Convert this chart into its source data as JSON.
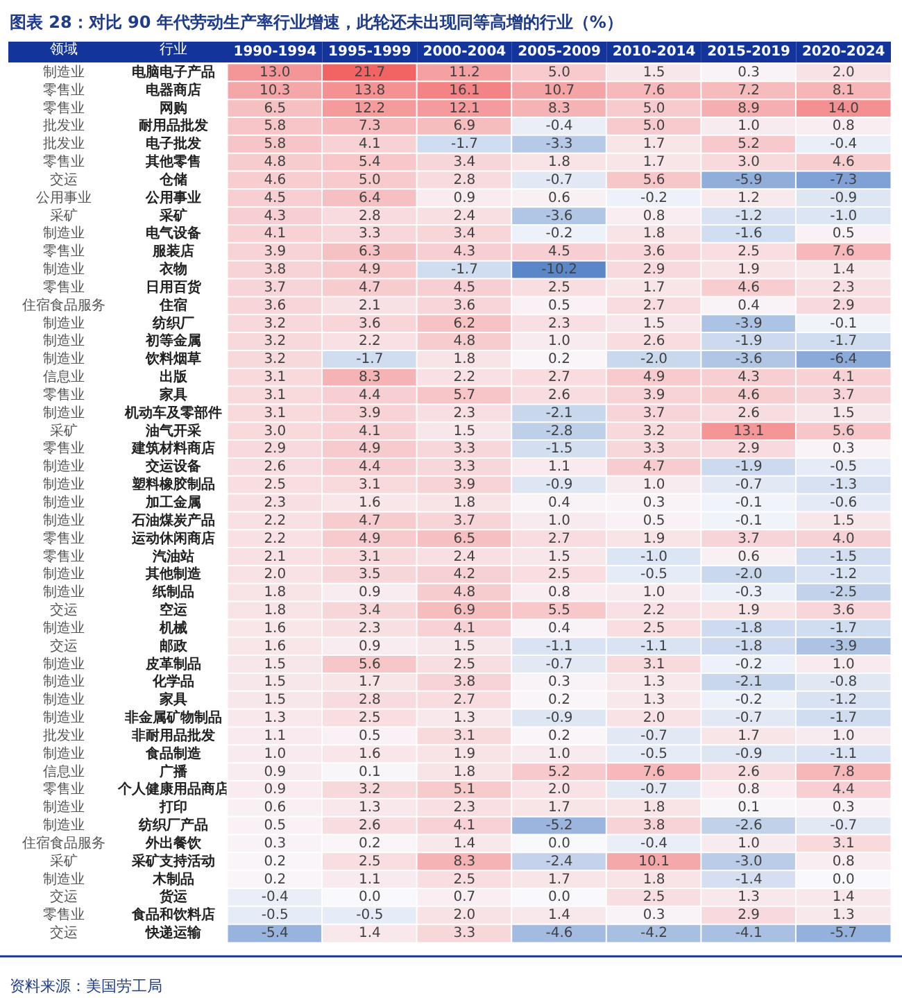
{
  "chart_data": {
    "type": "heatmap",
    "title": "图表 28：对比 90 年代劳动生产率行业增速，此轮还未出现同等高增的行业（%）",
    "ylabel": "行业",
    "y2label": "领域",
    "annotations": [
      "资料来源：美国劳工局"
    ],
    "data_labels": true,
    "categories": [
      "1990-1994",
      "1995-1999",
      "2000-2004",
      "2005-2009",
      "2010-2014",
      "2015-2019",
      "2020-2024"
    ],
    "y_categories": [
      "电脑电子产品",
      "电器商店",
      "网购",
      "耐用品批发",
      "电子批发",
      "其他零售",
      "仓储",
      "公用事业",
      "采矿",
      "电气设备",
      "服装店",
      "衣物",
      "日用百货",
      "住宿",
      "纺织厂",
      "初等金属",
      "饮料烟草",
      "出版",
      "家具",
      "机动车及零部件",
      "油气开采",
      "建筑材料商店",
      "交运设备",
      "塑料橡胶制品",
      "加工金属",
      "石油煤炭产品",
      "运动休闲商店",
      "汽油站",
      "其他制造",
      "纸制品",
      "空运",
      "机械",
      "邮政",
      "皮革制品",
      "化学品",
      "家具",
      "非金属矿物制品",
      "非耐用品批发",
      "食品制造",
      "广播",
      "个人健康用品商店",
      "打印",
      "纺织厂产品",
      "外出餐饮",
      "采矿支持活动",
      "木制品",
      "货运",
      "食品和饮料店",
      "快递运输"
    ],
    "y2_categories": [
      "制造业",
      "零售业",
      "零售业",
      "批发业",
      "批发业",
      "零售业",
      "交运",
      "公用事业",
      "采矿",
      "制造业",
      "零售业",
      "制造业",
      "零售业",
      "住宿食品服务",
      "制造业",
      "制造业",
      "制造业",
      "信息业",
      "零售业",
      "制造业",
      "采矿",
      "零售业",
      "制造业",
      "制造业",
      "制造业",
      "制造业",
      "零售业",
      "零售业",
      "制造业",
      "制造业",
      "交运",
      "制造业",
      "交运",
      "制造业",
      "制造业",
      "制造业",
      "制造业",
      "批发业",
      "制造业",
      "信息业",
      "零售业",
      "制造业",
      "制造业",
      "住宿食品服务",
      "采矿",
      "制造业",
      "交运",
      "零售业",
      "交运"
    ],
    "cells": [
      [
        13.0,
        21.7,
        11.2,
        5.0,
        1.5,
        0.3,
        2.0
      ],
      [
        10.3,
        13.8,
        16.1,
        10.7,
        7.6,
        7.2,
        8.1
      ],
      [
        6.5,
        12.2,
        12.1,
        8.3,
        5.0,
        8.9,
        14.0
      ],
      [
        5.8,
        7.3,
        6.9,
        -0.4,
        5.0,
        1.0,
        0.8
      ],
      [
        5.8,
        4.1,
        -1.7,
        -3.3,
        1.7,
        5.2,
        -0.4
      ],
      [
        4.8,
        5.4,
        3.4,
        1.8,
        1.7,
        3.0,
        4.6
      ],
      [
        4.6,
        5.0,
        2.8,
        -0.7,
        5.6,
        -5.9,
        -7.3
      ],
      [
        4.5,
        6.4,
        0.9,
        0.6,
        -0.2,
        1.2,
        -0.9
      ],
      [
        4.3,
        2.8,
        2.4,
        -3.6,
        0.8,
        -1.2,
        -1.0
      ],
      [
        4.1,
        3.3,
        3.4,
        -0.2,
        1.8,
        -1.6,
        0.5
      ],
      [
        3.9,
        6.3,
        4.3,
        4.5,
        3.6,
        2.5,
        7.6
      ],
      [
        3.8,
        4.9,
        -1.7,
        -10.2,
        2.9,
        1.9,
        1.4
      ],
      [
        3.7,
        4.7,
        4.5,
        2.5,
        1.7,
        4.6,
        2.3
      ],
      [
        3.6,
        2.1,
        3.6,
        0.5,
        2.7,
        0.4,
        2.9
      ],
      [
        3.2,
        3.6,
        6.2,
        2.3,
        1.5,
        -3.9,
        -0.1
      ],
      [
        3.2,
        2.2,
        4.8,
        1.0,
        2.6,
        -1.9,
        -1.7
      ],
      [
        3.2,
        -1.7,
        1.8,
        0.2,
        -2.0,
        -3.6,
        -6.4
      ],
      [
        3.1,
        8.3,
        2.2,
        2.7,
        4.9,
        4.3,
        4.1
      ],
      [
        3.1,
        4.4,
        5.7,
        2.6,
        3.9,
        4.6,
        3.7
      ],
      [
        3.1,
        3.9,
        2.3,
        -2.1,
        3.7,
        2.6,
        1.5
      ],
      [
        3.0,
        4.1,
        1.5,
        -2.8,
        3.2,
        13.1,
        5.6
      ],
      [
        2.9,
        4.9,
        3.3,
        -1.5,
        3.3,
        2.9,
        0.3
      ],
      [
        2.6,
        4.4,
        3.3,
        1.1,
        4.7,
        -1.9,
        -0.5
      ],
      [
        2.5,
        3.1,
        3.9,
        -0.9,
        1.0,
        -0.7,
        -1.3
      ],
      [
        2.3,
        1.6,
        1.8,
        0.4,
        0.3,
        -0.1,
        -0.6
      ],
      [
        2.2,
        4.7,
        3.7,
        1.0,
        0.5,
        -0.1,
        1.5
      ],
      [
        2.2,
        4.9,
        6.5,
        2.7,
        1.9,
        3.7,
        4.0
      ],
      [
        2.1,
        3.1,
        2.4,
        1.5,
        -1.0,
        0.6,
        -1.5
      ],
      [
        2.0,
        3.5,
        4.2,
        2.5,
        -0.5,
        -2.0,
        -1.2
      ],
      [
        1.8,
        0.9,
        4.8,
        0.8,
        1.0,
        -0.3,
        -2.5
      ],
      [
        1.8,
        3.4,
        6.9,
        5.5,
        2.2,
        1.9,
        3.6
      ],
      [
        1.6,
        2.3,
        4.1,
        0.4,
        2.5,
        -1.8,
        -1.7
      ],
      [
        1.6,
        0.9,
        1.5,
        -1.1,
        -1.1,
        -1.8,
        -3.9
      ],
      [
        1.5,
        5.6,
        2.5,
        -0.7,
        3.1,
        -0.2,
        1.0
      ],
      [
        1.5,
        1.7,
        3.8,
        0.3,
        1.3,
        -2.1,
        -0.8
      ],
      [
        1.5,
        2.8,
        2.7,
        0.2,
        1.3,
        -0.2,
        -1.2
      ],
      [
        1.3,
        2.5,
        1.3,
        -0.9,
        2.0,
        -0.7,
        -1.7
      ],
      [
        1.1,
        0.5,
        3.1,
        0.2,
        -0.7,
        1.7,
        1.0
      ],
      [
        1.0,
        1.6,
        1.9,
        1.0,
        -0.5,
        -0.9,
        -1.1
      ],
      [
        0.9,
        0.1,
        1.8,
        5.2,
        7.6,
        2.6,
        7.8
      ],
      [
        0.9,
        3.2,
        5.1,
        2.0,
        -0.7,
        0.8,
        4.4
      ],
      [
        0.6,
        1.3,
        2.3,
        1.7,
        1.8,
        0.1,
        0.3
      ],
      [
        0.5,
        2.6,
        4.1,
        -5.2,
        3.8,
        -2.6,
        -0.7
      ],
      [
        0.3,
        0.2,
        1.4,
        0.0,
        -0.4,
        1.0,
        3.1
      ],
      [
        0.2,
        2.5,
        8.3,
        -2.4,
        10.1,
        -3.0,
        0.8
      ],
      [
        0.2,
        1.1,
        2.5,
        1.7,
        1.8,
        -1.4,
        0.0
      ],
      [
        -0.4,
        0.0,
        0.7,
        0.0,
        2.5,
        1.3,
        1.4
      ],
      [
        -0.5,
        -0.5,
        2.0,
        1.4,
        0.3,
        2.9,
        1.3
      ],
      [
        -5.4,
        1.4,
        3.3,
        -4.6,
        -4.2,
        -4.1,
        -5.7
      ]
    ],
    "cell_labels": [
      [
        "13.0",
        "21.7",
        "11.2",
        "5.0",
        "1.5",
        "0.3",
        "2.0"
      ],
      [
        "10.3",
        "13.8",
        "16.1",
        "10.7",
        "7.6",
        "7.2",
        "8.1"
      ],
      [
        "6.5",
        "12.2",
        "12.1",
        "8.3",
        "5.0",
        "8.9",
        "14.0"
      ],
      [
        "5.8",
        "7.3",
        "6.9",
        "-0.4",
        "5.0",
        "1.0",
        "0.8"
      ],
      [
        "5.8",
        "4.1",
        "-1.7",
        "-3.3",
        "1.7",
        "5.2",
        "-0.4"
      ],
      [
        "4.8",
        "5.4",
        "3.4",
        "1.8",
        "1.7",
        "3.0",
        "4.6"
      ],
      [
        "4.6",
        "5.0",
        "2.8",
        "-0.7",
        "5.6",
        "-5.9",
        "-7.3"
      ],
      [
        "4.5",
        "6.4",
        "0.9",
        "0.6",
        "-0.2",
        "1.2",
        "-0.9"
      ],
      [
        "4.3",
        "2.8",
        "2.4",
        "-3.6",
        "0.8",
        "-1.2",
        "-1.0"
      ],
      [
        "4.1",
        "3.3",
        "3.4",
        "-0.2",
        "1.8",
        "-1.6",
        "0.5"
      ],
      [
        "3.9",
        "6.3",
        "4.3",
        "4.5",
        "3.6",
        "2.5",
        "7.6"
      ],
      [
        "3.8",
        "4.9",
        "-1.7",
        "-10.2",
        "2.9",
        "1.9",
        "1.4"
      ],
      [
        "3.7",
        "4.7",
        "4.5",
        "2.5",
        "1.7",
        "4.6",
        "2.3"
      ],
      [
        "3.6",
        "2.1",
        "3.6",
        "0.5",
        "2.7",
        "0.4",
        "2.9"
      ],
      [
        "3.2",
        "3.6",
        "6.2",
        "2.3",
        "1.5",
        "-3.9",
        "-0.1"
      ],
      [
        "3.2",
        "2.2",
        "4.8",
        "1.0",
        "2.6",
        "-1.9",
        "-1.7"
      ],
      [
        "3.2",
        "-1.7",
        "1.8",
        "0.2",
        "-2.0",
        "-3.6",
        "-6.4"
      ],
      [
        "3.1",
        "8.3",
        "2.2",
        "2.7",
        "4.9",
        "4.3",
        "4.1"
      ],
      [
        "3.1",
        "4.4",
        "5.7",
        "2.6",
        "3.9",
        "4.6",
        "3.7"
      ],
      [
        "3.1",
        "3.9",
        "2.3",
        "-2.1",
        "3.7",
        "2.6",
        "1.5"
      ],
      [
        "3.0",
        "4.1",
        "1.5",
        "-2.8",
        "3.2",
        "13.1",
        "5.6"
      ],
      [
        "2.9",
        "4.9",
        "3.3",
        "-1.5",
        "3.3",
        "2.9",
        "0.3"
      ],
      [
        "2.6",
        "4.4",
        "3.3",
        "1.1",
        "4.7",
        "-1.9",
        "-0.5"
      ],
      [
        "2.5",
        "3.1",
        "3.9",
        "-0.9",
        "1.0",
        "-0.7",
        "-1.3"
      ],
      [
        "2.3",
        "1.6",
        "1.8",
        "0.4",
        "0.3",
        "-0.1",
        "-0.6"
      ],
      [
        "2.2",
        "4.7",
        "3.7",
        "1.0",
        "0.5",
        "-0.1",
        "1.5"
      ],
      [
        "2.2",
        "4.9",
        "6.5",
        "2.7",
        "1.9",
        "3.7",
        "4.0"
      ],
      [
        "2.1",
        "3.1",
        "2.4",
        "1.5",
        "-1.0",
        "0.6",
        "-1.5"
      ],
      [
        "2.0",
        "3.5",
        "4.2",
        "2.5",
        "-0.5",
        "-2.0",
        "-1.2"
      ],
      [
        "1.8",
        "0.9",
        "4.8",
        "0.8",
        "1.0",
        "-0.3",
        "-2.5"
      ],
      [
        "1.8",
        "3.4",
        "6.9",
        "5.5",
        "2.2",
        "1.9",
        "3.6"
      ],
      [
        "1.6",
        "2.3",
        "4.1",
        "0.4",
        "2.5",
        "-1.8",
        "-1.7"
      ],
      [
        "1.6",
        "0.9",
        "1.5",
        "-1.1",
        "-1.1",
        "-1.8",
        "-3.9"
      ],
      [
        "1.5",
        "5.6",
        "2.5",
        "-0.7",
        "3.1",
        "-0.2",
        "1.0"
      ],
      [
        "1.5",
        "1.7",
        "3.8",
        "0.3",
        "1.3",
        "-2.1",
        "-0.8"
      ],
      [
        "1.5",
        "2.8",
        "2.7",
        "0.2",
        "1.3",
        "-0.2",
        "-1.2"
      ],
      [
        "1.3",
        "2.5",
        "1.3",
        "-0.9",
        "2.0",
        "-0.7",
        "-1.7"
      ],
      [
        "1.1",
        "0.5",
        "3.1",
        "0.2",
        "-0.7",
        "1.7",
        "1.0"
      ],
      [
        "1.0",
        "1.6",
        "1.9",
        "1.0",
        "-0.5",
        "-0.9",
        "-1.1"
      ],
      [
        "0.9",
        "0.1",
        "1.8",
        "5.2",
        "7.6",
        "2.6",
        "7.8"
      ],
      [
        "0.9",
        "3.2",
        "5.1",
        "2.0",
        "-0.7",
        "0.8",
        "4.4"
      ],
      [
        "0.6",
        "1.3",
        "2.3",
        "1.7",
        "1.8",
        "0.1",
        "0.3"
      ],
      [
        "0.5",
        "2.6",
        "4.1",
        "-5.2",
        "3.8",
        "-2.6",
        "-0.7"
      ],
      [
        "0.3",
        "0.2",
        "1.4",
        "0.0",
        "-0.4",
        "1.0",
        "3.1"
      ],
      [
        "0.2",
        "2.5",
        "8.3",
        "-2.4",
        "10.1",
        "-3.0",
        "0.8"
      ],
      [
        "0.2",
        "1.1",
        "2.5",
        "1.7",
        "1.8",
        "-1.4",
        "0.0"
      ],
      [
        "-0.4",
        "0.0",
        "0.7",
        "0.0",
        "2.5",
        "1.3",
        "1.4"
      ],
      [
        "-0.5",
        "-0.5",
        "2.0",
        "1.4",
        "0.3",
        "2.9",
        "1.3"
      ],
      [
        "-5.4",
        "1.4",
        "3.3",
        "-4.6",
        "-4.2",
        "-4.1",
        "-5.7"
      ]
    ]
  }
}
